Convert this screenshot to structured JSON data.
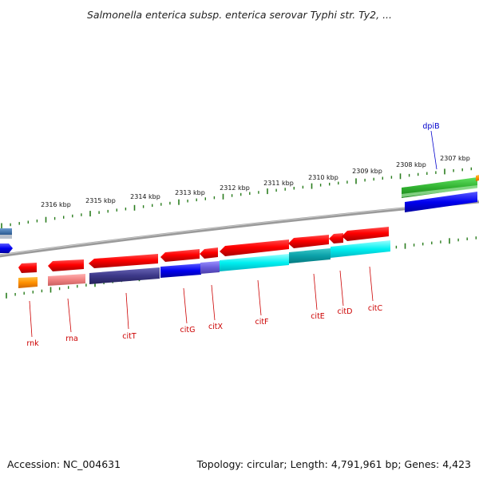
{
  "title": "Salmonella enterica subsp. enterica serovar Typhi str. Ty2, ...",
  "footer": {
    "accession": "Accession: NC_004631",
    "summary": "Topology: circular; Length: 4,791,961 bp; Genes: 4,423"
  },
  "colors": {
    "tick": "#2a7d1e",
    "backbone": "#8a8a8a",
    "gene_label": "#cc0000",
    "dpiB_label": "#0000cc"
  },
  "scale_labels": [
    "2307 kbp",
    "2308 kbp",
    "2309 kbp",
    "2310 kbp",
    "2311 kbp",
    "2312 kbp",
    "2313 kbp",
    "2314 kbp",
    "2315 kbp",
    "2316 kbp"
  ],
  "gene_labels": [
    {
      "name": "rnk",
      "color": "#cc0000"
    },
    {
      "name": "rna",
      "color": "#cc0000"
    },
    {
      "name": "citT",
      "color": "#cc0000"
    },
    {
      "name": "citG",
      "color": "#cc0000"
    },
    {
      "name": "citX",
      "color": "#cc0000"
    },
    {
      "name": "citF",
      "color": "#cc0000"
    },
    {
      "name": "citE",
      "color": "#cc0000"
    },
    {
      "name": "citD",
      "color": "#cc0000"
    },
    {
      "name": "citC",
      "color": "#cc0000"
    },
    {
      "name": "dpiB",
      "color": "#0000cc"
    }
  ]
}
